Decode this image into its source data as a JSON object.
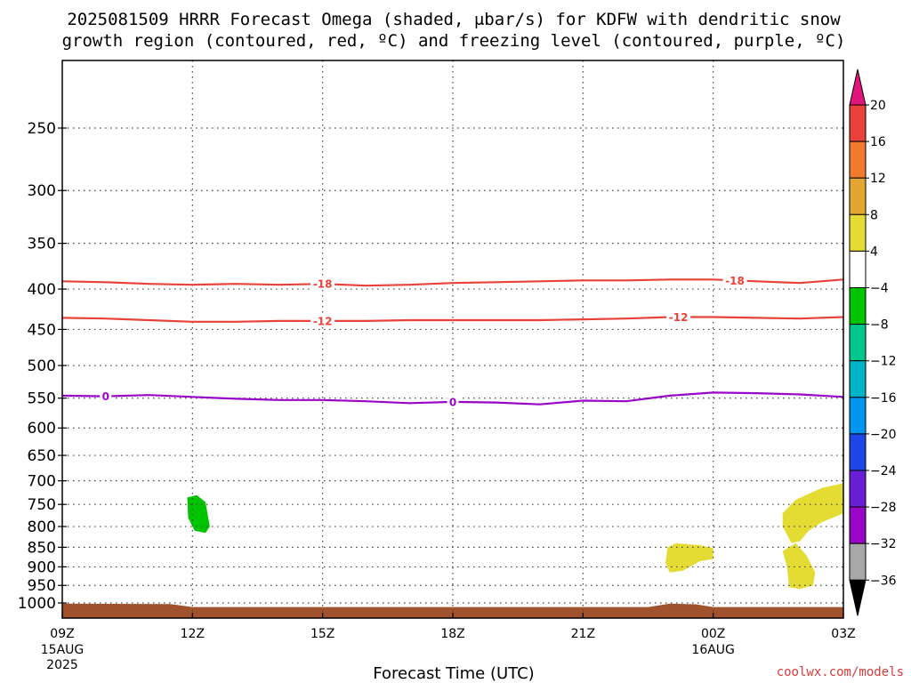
{
  "title": {
    "line1": "2025081509 HRRR Forecast Omega (shaded, μbar/s) for KDFW with dendritic snow",
    "line2": "growth region (contoured, red, ºC) and freezing level (contoured, purple, ºC)"
  },
  "credit": "coolwx.com/models",
  "chart_data": {
    "type": "contour",
    "title": "2025081509 HRRR Forecast Omega (shaded, μbar/s) for KDFW with dendritic snow growth region (contoured, red, ºC) and freezing level (contoured, purple, ºC)",
    "xlabel": "Forecast Time (UTC)",
    "ylabel": "",
    "x_unit": "hours since 09Z 15AUG2025",
    "xlim": [
      0,
      18
    ],
    "ylim": [
      1050,
      200
    ],
    "y_scale": "log-pressure",
    "grid": true,
    "x_ticks": [
      {
        "x": 0,
        "label": "09Z",
        "sub": [
          "15AUG",
          "2025"
        ]
      },
      {
        "x": 3,
        "label": "12Z",
        "sub": []
      },
      {
        "x": 6,
        "label": "15Z",
        "sub": []
      },
      {
        "x": 9,
        "label": "18Z",
        "sub": []
      },
      {
        "x": 12,
        "label": "21Z",
        "sub": []
      },
      {
        "x": 15,
        "label": "00Z",
        "sub": [
          "16AUG"
        ]
      },
      {
        "x": 18,
        "label": "03Z",
        "sub": []
      }
    ],
    "y_ticks": [
      250,
      300,
      350,
      400,
      450,
      500,
      550,
      600,
      650,
      700,
      750,
      800,
      850,
      900,
      950,
      1000
    ],
    "contours": [
      {
        "name": "-18",
        "color": "#e8423a",
        "label_at": [
          6,
          15.5
        ],
        "points": [
          [
            0,
            391
          ],
          [
            1,
            392
          ],
          [
            2,
            394
          ],
          [
            3,
            395
          ],
          [
            4,
            394
          ],
          [
            5,
            395
          ],
          [
            6,
            394
          ],
          [
            7,
            396
          ],
          [
            8,
            395
          ],
          [
            9,
            393
          ],
          [
            10,
            392
          ],
          [
            11,
            391
          ],
          [
            12,
            390
          ],
          [
            13,
            390
          ],
          [
            14,
            389
          ],
          [
            15,
            389
          ],
          [
            16,
            391
          ],
          [
            17,
            393
          ],
          [
            18,
            389
          ]
        ]
      },
      {
        "name": "-12",
        "color": "#e8423a",
        "label_at": [
          6,
          14.2
        ],
        "points": [
          [
            0,
            435
          ],
          [
            1,
            436
          ],
          [
            2,
            438
          ],
          [
            3,
            440
          ],
          [
            4,
            440
          ],
          [
            5,
            439
          ],
          [
            6,
            439
          ],
          [
            7,
            439
          ],
          [
            8,
            438
          ],
          [
            9,
            438
          ],
          [
            10,
            438
          ],
          [
            11,
            438
          ],
          [
            12,
            437
          ],
          [
            13,
            436
          ],
          [
            14,
            434
          ],
          [
            15,
            434
          ],
          [
            16,
            435
          ],
          [
            17,
            436
          ],
          [
            18,
            434
          ]
        ]
      },
      {
        "name": "0",
        "color": "#9a06c8",
        "label_at": [
          1,
          9
        ],
        "points": [
          [
            0,
            546
          ],
          [
            1,
            547
          ],
          [
            2,
            545
          ],
          [
            3,
            548
          ],
          [
            4,
            551
          ],
          [
            5,
            553
          ],
          [
            6,
            553
          ],
          [
            7,
            555
          ],
          [
            8,
            558
          ],
          [
            9,
            556
          ],
          [
            10,
            557
          ],
          [
            11,
            560
          ],
          [
            12,
            554
          ],
          [
            13,
            555
          ],
          [
            14,
            546
          ],
          [
            15,
            541
          ],
          [
            16,
            542
          ],
          [
            17,
            544
          ],
          [
            18,
            548
          ]
        ]
      }
    ],
    "shaded_regions": [
      {
        "value": -6,
        "color": "#00c400",
        "points": [
          [
            2.88,
            735
          ],
          [
            3.1,
            730
          ],
          [
            3.3,
            745
          ],
          [
            3.4,
            800
          ],
          [
            3.3,
            815
          ],
          [
            3.05,
            810
          ],
          [
            2.9,
            780
          ]
        ]
      },
      {
        "value": 4,
        "color": "#e4dc32",
        "points": [
          [
            13.95,
            850
          ],
          [
            14.15,
            840
          ],
          [
            14.7,
            845
          ],
          [
            15,
            852
          ],
          [
            15,
            880
          ],
          [
            14.7,
            885
          ],
          [
            14.3,
            910
          ],
          [
            14,
            915
          ],
          [
            13.9,
            890
          ]
        ]
      },
      {
        "value": 4,
        "color": "#e4dc32",
        "points": [
          [
            16.6,
            770
          ],
          [
            16.9,
            740
          ],
          [
            17.5,
            715
          ],
          [
            18,
            705
          ],
          [
            18,
            770
          ],
          [
            17.5,
            790
          ],
          [
            17.2,
            810
          ],
          [
            17,
            835
          ],
          [
            16.8,
            840
          ],
          [
            16.6,
            800
          ]
        ]
      },
      {
        "value": 4,
        "color": "#e4dc32",
        "points": [
          [
            16.6,
            860
          ],
          [
            16.9,
            840
          ],
          [
            17.15,
            870
          ],
          [
            17.35,
            915
          ],
          [
            17.3,
            950
          ],
          [
            17,
            960
          ],
          [
            16.75,
            955
          ],
          [
            16.7,
            900
          ]
        ]
      }
    ],
    "ground": {
      "color": "#a0522d",
      "top": [
        [
          0,
          1002
        ],
        [
          2.5,
          1003
        ],
        [
          3,
          1012
        ],
        [
          13.5,
          1012
        ],
        [
          14,
          1002
        ],
        [
          14.6,
          1004
        ],
        [
          15,
          1012
        ],
        [
          18,
          1012
        ]
      ],
      "bottom": 1050
    },
    "colorbar": {
      "labels": [
        "20",
        "16",
        "12",
        "8",
        "4",
        "−4",
        "−8",
        "−12",
        "−16",
        "−20",
        "−24",
        "−28",
        "−32",
        "−36"
      ],
      "segments": [
        {
          "color": "#e8423a"
        },
        {
          "color": "#f07a2e"
        },
        {
          "color": "#e3a630"
        },
        {
          "color": "#e4dc32"
        },
        {
          "color": "#ffffff"
        },
        {
          "color": "#00c400"
        },
        {
          "color": "#00c88c"
        },
        {
          "color": "#00b4c8"
        },
        {
          "color": "#0096f0"
        },
        {
          "color": "#1e46e6"
        },
        {
          "color": "#6a1ed4"
        },
        {
          "color": "#9a06c8"
        },
        {
          "color": "#a8a8a8"
        }
      ],
      "top_arrow_color": "#e0147a",
      "bottom_arrow_color": "#000000"
    }
  }
}
